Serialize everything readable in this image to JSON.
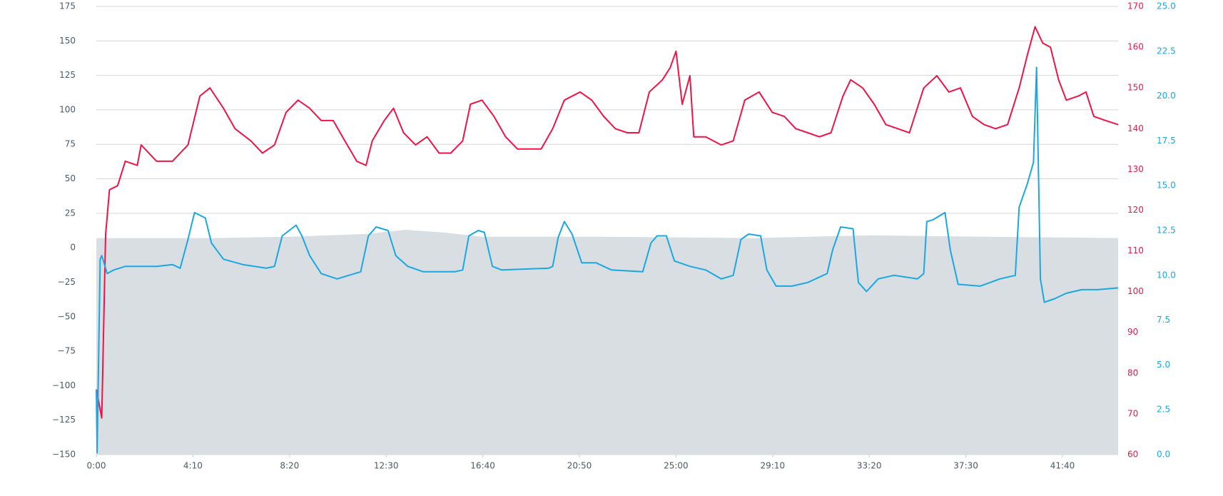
{
  "chart_data": {
    "type": "line",
    "xlim": [
      0,
      2644
    ],
    "xticks": [
      {
        "value": 0,
        "label": "0:00"
      },
      {
        "value": 250,
        "label": "4:10"
      },
      {
        "value": 500,
        "label": "8:20"
      },
      {
        "value": 750,
        "label": "12:30"
      },
      {
        "value": 1000,
        "label": "16:40"
      },
      {
        "value": 1250,
        "label": "20:50"
      },
      {
        "value": 1500,
        "label": "25:00"
      },
      {
        "value": 1750,
        "label": "29:10"
      },
      {
        "value": 2000,
        "label": "33:20"
      },
      {
        "value": 2250,
        "label": "37:30"
      },
      {
        "value": 2500,
        "label": "41:40"
      }
    ],
    "ylim": [
      -150,
      175
    ],
    "yticks": [
      {
        "value": -150,
        "label": "−150"
      },
      {
        "value": -125,
        "label": "−125"
      },
      {
        "value": -100,
        "label": "−100"
      },
      {
        "value": -75,
        "label": "−75"
      },
      {
        "value": -50,
        "label": "−50"
      },
      {
        "value": -25,
        "label": "−25"
      },
      0,
      25,
      50,
      75,
      100,
      125,
      150,
      175
    ],
    "y2lim": [
      60,
      170
    ],
    "y2ticks": [
      60,
      70,
      80,
      90,
      100,
      110,
      120,
      130,
      140,
      150,
      160,
      170
    ],
    "y3lim": [
      0,
      25
    ],
    "y3ticks": [
      {
        "value": 0,
        "label": "0.0"
      },
      {
        "value": 2.5,
        "label": "2.5"
      },
      {
        "value": 5,
        "label": "5.0"
      },
      {
        "value": 7.5,
        "label": "7.5"
      },
      {
        "value": 10,
        "label": "10.0"
      },
      {
        "value": 12.5,
        "label": "12.5"
      },
      {
        "value": 15,
        "label": "15.0"
      },
      {
        "value": 17.5,
        "label": "17.5"
      },
      {
        "value": 20,
        "label": "20.0"
      },
      {
        "value": 22.5,
        "label": "22.5"
      },
      {
        "value": 25,
        "label": "25.0"
      }
    ],
    "grid": true,
    "series": [
      {
        "type": "area",
        "axis": "y",
        "color": "#d9dee3",
        "x": [
          0,
          300,
          500,
          700,
          800,
          900,
          1000,
          1300,
          1700,
          2000,
          2300,
          2644
        ],
        "values": [
          7,
          7,
          8,
          10,
          13,
          11,
          8,
          8,
          7,
          9,
          8,
          7
        ]
      },
      {
        "type": "line",
        "axis": "y2",
        "color": "#ef1346",
        "x": [
          0,
          14,
          24,
          34,
          55,
          75,
          106,
          116,
          156,
          197,
          237,
          268,
          294,
          329,
          359,
          400,
          430,
          461,
          491,
          522,
          552,
          582,
          613,
          643,
          674,
          698,
          714,
          745,
          769,
          795,
          826,
          856,
          887,
          917,
          948,
          968,
          998,
          1029,
          1059,
          1090,
          1120,
          1151,
          1181,
          1211,
          1252,
          1282,
          1313,
          1343,
          1374,
          1404,
          1431,
          1465,
          1485,
          1500,
          1516,
          1536,
          1546,
          1577,
          1617,
          1648,
          1678,
          1715,
          1749,
          1780,
          1810,
          1841,
          1871,
          1901,
          1932,
          1952,
          1983,
          2013,
          2043,
          2074,
          2104,
          2141,
          2175,
          2206,
          2236,
          2267,
          2297,
          2327,
          2358,
          2388,
          2409,
          2429,
          2449,
          2469,
          2490,
          2510,
          2541,
          2561,
          2581,
          2612,
          2644
        ],
        "values": [
          76,
          69,
          114,
          125,
          126,
          132,
          131,
          136,
          132,
          132,
          136,
          148,
          150,
          145,
          140,
          137,
          134,
          136,
          144,
          147,
          145,
          142,
          142,
          137,
          132,
          131,
          137,
          142,
          145,
          139,
          136,
          138,
          134,
          134,
          137,
          146,
          147,
          143,
          138,
          135,
          135,
          135,
          140,
          147,
          149,
          147,
          143,
          140,
          139,
          139,
          149,
          152,
          155,
          159,
          146,
          153,
          138,
          138,
          136,
          137,
          147,
          149,
          144,
          143,
          140,
          139,
          138,
          139,
          148,
          152,
          150,
          146,
          141,
          140,
          139,
          150,
          153,
          149,
          150,
          143,
          141,
          140,
          141,
          150,
          158,
          165,
          161,
          160,
          152,
          147,
          148,
          149,
          143,
          142,
          141
        ]
      },
      {
        "type": "line",
        "axis": "y3",
        "color": "#1aa7e2",
        "x": [
          0,
          2,
          10,
          14,
          28,
          45,
          75,
          156,
          197,
          217,
          237,
          254,
          282,
          298,
          329,
          379,
          440,
          461,
          481,
          517,
          532,
          552,
          582,
          623,
          684,
          704,
          724,
          755,
          775,
          806,
          846,
          927,
          948,
          964,
          988,
          1004,
          1025,
          1049,
          1171,
          1181,
          1195,
          1211,
          1231,
          1256,
          1293,
          1333,
          1414,
          1435,
          1451,
          1475,
          1496,
          1536,
          1577,
          1617,
          1648,
          1668,
          1688,
          1719,
          1735,
          1759,
          1800,
          1841,
          1891,
          1905,
          1926,
          1958,
          1972,
          1993,
          2023,
          2064,
          2125,
          2141,
          2149,
          2165,
          2196,
          2210,
          2230,
          2287,
          2338,
          2378,
          2388,
          2409,
          2425,
          2433,
          2443,
          2453,
          2480,
          2510,
          2550,
          2591,
          2644
        ],
        "values": [
          3.6,
          0.1,
          10.9,
          11.1,
          10.1,
          10.3,
          10.5,
          10.5,
          10.6,
          10.4,
          12.0,
          13.5,
          13.2,
          11.8,
          10.9,
          10.6,
          10.4,
          10.5,
          12.2,
          12.8,
          12.2,
          11.1,
          10.1,
          9.8,
          10.2,
          12.2,
          12.7,
          12.5,
          11.1,
          10.5,
          10.2,
          10.2,
          10.3,
          12.2,
          12.5,
          12.4,
          10.5,
          10.3,
          10.4,
          10.5,
          12.1,
          13.0,
          12.3,
          10.7,
          10.7,
          10.3,
          10.2,
          11.8,
          12.2,
          12.2,
          10.8,
          10.5,
          10.3,
          9.8,
          10.0,
          12.0,
          12.3,
          12.2,
          10.3,
          9.4,
          9.4,
          9.6,
          10.1,
          11.4,
          12.7,
          12.6,
          9.6,
          9.1,
          9.8,
          10.0,
          9.8,
          10.1,
          13.0,
          13.1,
          13.5,
          11.4,
          9.5,
          9.4,
          9.8,
          10.0,
          13.8,
          15.1,
          16.3,
          21.6,
          9.8,
          8.5,
          8.7,
          9.0,
          9.2,
          9.2,
          9.3
        ]
      }
    ]
  }
}
